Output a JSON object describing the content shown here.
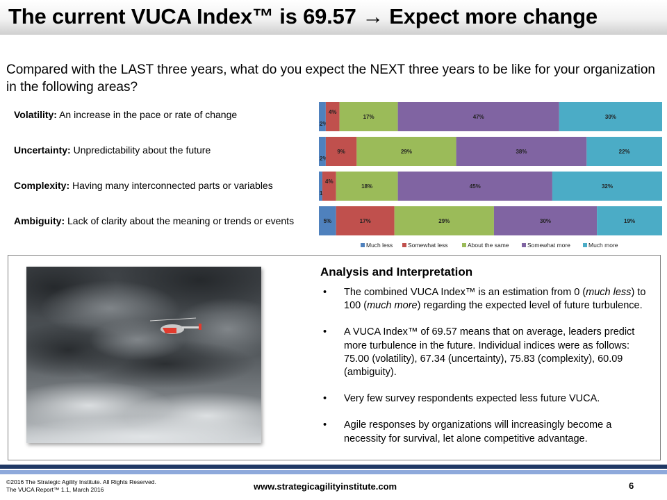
{
  "title": "The current VUCA Index™ is 69.57 → Expect more change",
  "question": "Compared with the LAST three years, what do you expect the NEXT three years to be like for your organization in the following areas?",
  "categories": [
    {
      "name": "Volatility:",
      "description": "An increase in the pace or rate of change"
    },
    {
      "name": "Uncertainty:",
      "description": "Unpredictability about the future"
    },
    {
      "name": "Complexity:",
      "description": "Having many interconnected parts or variables"
    },
    {
      "name": "Ambiguity:",
      "description": "Lack of clarity about the meaning or trends or events"
    }
  ],
  "chart_data": {
    "type": "bar",
    "orientation": "horizontal",
    "stacked": true,
    "percent_stacked": true,
    "categories": [
      "Volatility",
      "Uncertainty",
      "Complexity",
      "Ambiguity"
    ],
    "series": [
      {
        "name": "Much less",
        "color": "#4f81bd",
        "values": [
          2,
          2,
          1,
          5
        ],
        "labels": [
          "2%",
          "2%",
          "1%",
          "5%"
        ]
      },
      {
        "name": "Somewhat less",
        "color": "#c0504d",
        "values": [
          4,
          9,
          4,
          17
        ],
        "labels": [
          "4%",
          "9%",
          "4%",
          "17%"
        ]
      },
      {
        "name": "About the same",
        "color": "#9bbb59",
        "values": [
          17,
          29,
          18,
          29
        ],
        "labels": [
          "17%",
          "29%",
          "18%",
          "29%"
        ]
      },
      {
        "name": "Somewhat more",
        "color": "#8064a2",
        "values": [
          47,
          38,
          45,
          30
        ],
        "labels": [
          "47%",
          "38%",
          "45%",
          "30%"
        ]
      },
      {
        "name": "Much more",
        "color": "#4bacc6",
        "values": [
          30,
          22,
          32,
          19
        ],
        "labels": [
          "30%",
          "22%",
          "32%",
          "19%"
        ]
      }
    ],
    "legend_position": "bottom",
    "grid": false
  },
  "analysis": {
    "heading": "Analysis and Interpretation",
    "bullet_symbol": "•",
    "bullets": [
      [
        "The combined VUCA Index™  is an estimation from 0 (",
        "much less",
        ") to 100 (",
        "much more",
        ") regarding the expected level of future turbulence."
      ],
      [
        "A VUCA Index™  of 69.57 means that on average, leaders predict more turbulence in the future. Individual indices were as follows: 75.00 (volatility),  67.34 (uncertainty),  75.83 (complexity),  60.09 (ambiguity).",
        "",
        "",
        "",
        ""
      ],
      [
        "Very few survey respondents expected less future  VUCA.",
        "",
        "",
        "",
        ""
      ],
      [
        "Agile responses by organizations will increasingly  become a necessity for survival, let alone competitive advantage.",
        "",
        "",
        "",
        ""
      ]
    ]
  },
  "footer": {
    "copyright_line1": "©2016 The Strategic Agility Institute. All Rights Reserved.",
    "copyright_line2": "The VUCA Report™ 1.1, March 2016",
    "website": "www.strategicagilityinstitute.com",
    "page_number": "6"
  }
}
